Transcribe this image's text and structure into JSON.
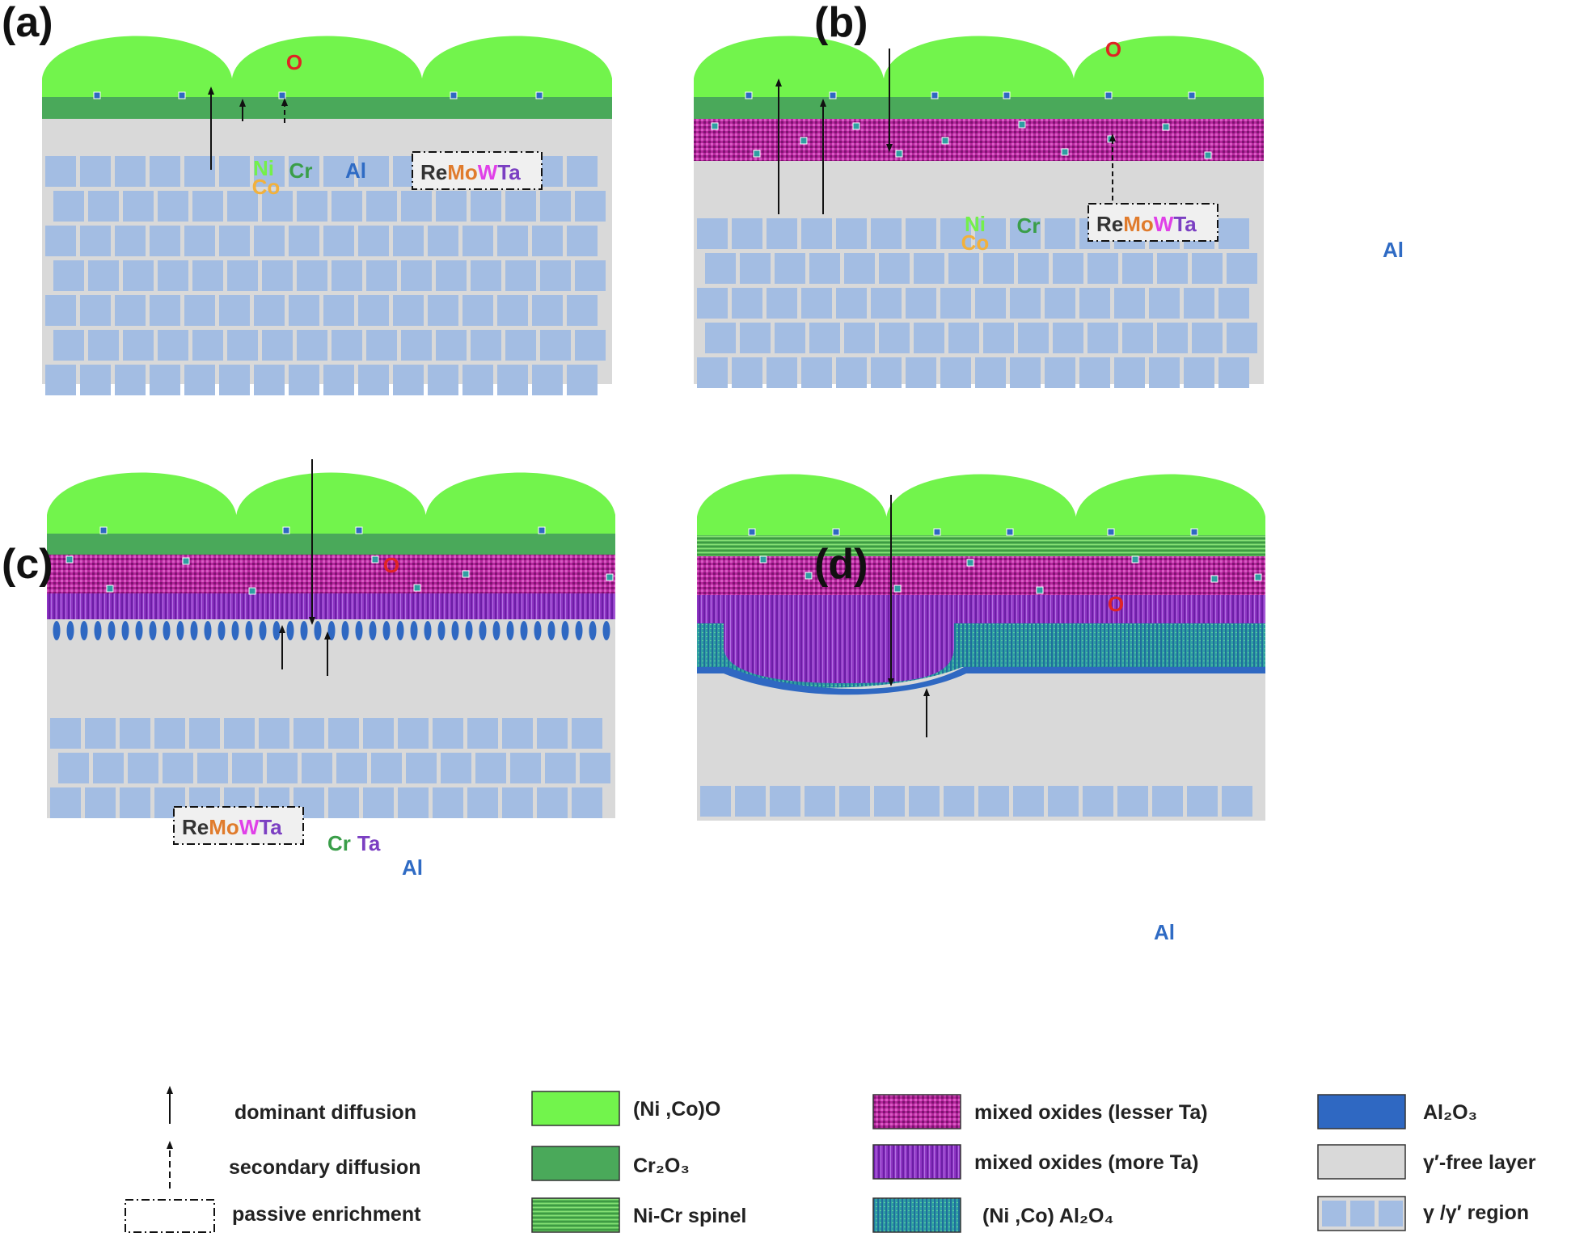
{
  "panels": [
    {
      "label": "(a)",
      "oxygen": "O",
      "diffusion": [
        {
          "line1": "Ni",
          "line2": "Co",
          "type": "dominant"
        },
        {
          "line1": "Cr",
          "type": "dominant"
        },
        {
          "line1": "Al",
          "type": "secondary"
        }
      ],
      "enrichment": [
        "Re",
        "Mo",
        "W",
        "Ta"
      ]
    },
    {
      "label": "(b)",
      "oxygen": "O",
      "diffusion": [
        {
          "line1": "Ni",
          "line2": "Co",
          "type": "dominant"
        },
        {
          "line1": "Cr",
          "type": "dominant"
        },
        {
          "line1": "Al",
          "type": "secondary"
        }
      ],
      "enrichment": [
        "Re",
        "Mo",
        "W",
        "Ta"
      ]
    },
    {
      "label": "(c)",
      "oxygen": "O",
      "diffusion": [
        {
          "line1": "Cr",
          "line1b": "Ta",
          "type": "dominant"
        },
        {
          "line1": "Al",
          "type": "dominant"
        }
      ],
      "enrichment": [
        "Re",
        "Mo",
        "W",
        "Ta"
      ]
    },
    {
      "label": "(d)",
      "oxygen": "O",
      "diffusion": [
        {
          "line1": "Al",
          "type": "dominant"
        }
      ]
    }
  ],
  "legend": {
    "dominant": "dominant diffusion",
    "secondary": "secondary diffusion",
    "passive": "passive enrichment",
    "nico_o": "(Ni ,Co)O",
    "cr2o3": "Cr₂O₃",
    "spinel": "Ni-Cr spinel",
    "mixed_lesser": "mixed oxides (lesser Ta)",
    "mixed_more": "mixed oxides (more Ta)",
    "nico_al2o4": "(Ni ,Co) Al₂O₄",
    "al2o3": "Al₂O₃",
    "gamma_free": "γ′-free layer",
    "gamma_region": "γ /γ′ region"
  },
  "colors": {
    "nico_o": "#72f44c",
    "cr2o3": "#4aa95a",
    "mixed_lesser": "#b5269c",
    "mixed_more": "#8f36c4",
    "nico_al2o4": "#2f9ea2",
    "al2o3": "#2f68c2",
    "gamma_free": "#d9d9d9",
    "gamma_cube": "#a3bde3",
    "oxygen_label": "#e02424",
    "ni": "#74f04a",
    "co": "#f2b13c",
    "cr": "#3a9e49",
    "al": "#2f6bc4",
    "re": "#333333",
    "mo": "#e07b2c",
    "w": "#e040e8",
    "ta": "#7b3fc2"
  }
}
